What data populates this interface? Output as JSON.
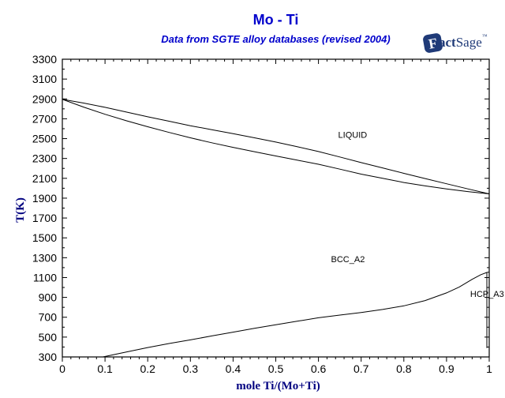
{
  "header": {
    "title": "Mo - Ti",
    "subtitle": "Data from SGTE alloy databases (revised 2004)",
    "title_color": "#0000CC"
  },
  "logo": {
    "f": "F",
    "act": "act",
    "sage": "Sage",
    "tm": "™",
    "color": "#1F3A78"
  },
  "chart_data": {
    "type": "line",
    "title": "Mo - Ti",
    "subtitle": "Data from SGTE alloy databases (revised 2004)",
    "xlabel": "mole Ti/(Mo+Ti)",
    "ylabel": "T(K)",
    "xlim": [
      0,
      1
    ],
    "ylim": [
      300,
      3300
    ],
    "x_major_tick": 0.1,
    "x_minor_tick": 0.02,
    "y_major_tick": 200,
    "y_minor_tick": 100,
    "grid": "off",
    "legend": "none",
    "x_tick_labels": [
      "0",
      "0.1",
      "0.2",
      "0.3",
      "0.4",
      "0.5",
      "0.6",
      "0.7",
      "0.8",
      "0.9",
      "1"
    ],
    "y_tick_labels": [
      "300",
      "500",
      "700",
      "900",
      "1100",
      "1300",
      "1500",
      "1700",
      "1900",
      "2100",
      "2300",
      "2500",
      "2700",
      "2900",
      "3100",
      "3300"
    ],
    "curve_color": "#000000",
    "axis_label_color": "#000080",
    "tick_label_color": "#000000",
    "series": [
      {
        "name": "liquidus",
        "points": [
          [
            0,
            2896
          ],
          [
            0.05,
            2858
          ],
          [
            0.1,
            2815
          ],
          [
            0.15,
            2768
          ],
          [
            0.2,
            2720
          ],
          [
            0.25,
            2675
          ],
          [
            0.3,
            2630
          ],
          [
            0.35,
            2590
          ],
          [
            0.4,
            2550
          ],
          [
            0.45,
            2508
          ],
          [
            0.5,
            2465
          ],
          [
            0.55,
            2418
          ],
          [
            0.6,
            2370
          ],
          [
            0.65,
            2315
          ],
          [
            0.7,
            2258
          ],
          [
            0.75,
            2205
          ],
          [
            0.8,
            2150
          ],
          [
            0.85,
            2098
          ],
          [
            0.9,
            2045
          ],
          [
            0.95,
            1993
          ],
          [
            1,
            1943
          ]
        ]
      },
      {
        "name": "solidus",
        "points": [
          [
            0,
            2896
          ],
          [
            0.05,
            2818
          ],
          [
            0.1,
            2745
          ],
          [
            0.15,
            2680
          ],
          [
            0.2,
            2620
          ],
          [
            0.25,
            2562
          ],
          [
            0.3,
            2508
          ],
          [
            0.35,
            2458
          ],
          [
            0.4,
            2412
          ],
          [
            0.45,
            2368
          ],
          [
            0.5,
            2325
          ],
          [
            0.55,
            2283
          ],
          [
            0.6,
            2242
          ],
          [
            0.65,
            2192
          ],
          [
            0.7,
            2142
          ],
          [
            0.75,
            2100
          ],
          [
            0.8,
            2058
          ],
          [
            0.85,
            2024
          ],
          [
            0.9,
            1993
          ],
          [
            0.95,
            1966
          ],
          [
            1,
            1943
          ]
        ]
      },
      {
        "name": "bcc-hcp-boundary",
        "points": [
          [
            0.095,
            300
          ],
          [
            0.15,
            350
          ],
          [
            0.2,
            395
          ],
          [
            0.25,
            435
          ],
          [
            0.3,
            472
          ],
          [
            0.35,
            512
          ],
          [
            0.4,
            550
          ],
          [
            0.45,
            588
          ],
          [
            0.5,
            625
          ],
          [
            0.55,
            660
          ],
          [
            0.6,
            695
          ],
          [
            0.65,
            722
          ],
          [
            0.7,
            748
          ],
          [
            0.75,
            778
          ],
          [
            0.8,
            815
          ],
          [
            0.85,
            868
          ],
          [
            0.9,
            945
          ],
          [
            0.93,
            1005
          ],
          [
            0.96,
            1082
          ],
          [
            0.98,
            1128
          ],
          [
            0.995,
            1152
          ],
          [
            1,
            1155
          ]
        ]
      },
      {
        "name": "hcp-solvus",
        "points": [
          [
            0.9945,
            1150
          ],
          [
            0.9945,
            390
          ]
        ]
      }
    ],
    "region_labels": [
      {
        "text": "LIQUID",
        "x": 0.68,
        "T": 2540
      },
      {
        "text": "BCC_A2",
        "x": 0.669,
        "T": 1285
      },
      {
        "text": "HCP_A3",
        "x": 0.995,
        "T": 935
      }
    ]
  }
}
